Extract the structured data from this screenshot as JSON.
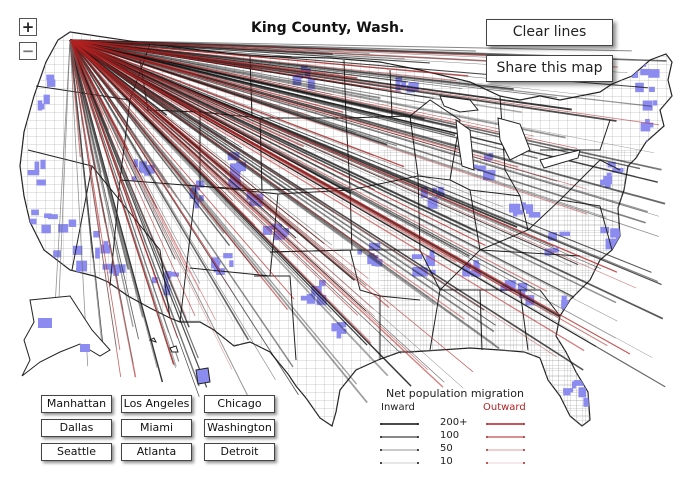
{
  "map": {
    "title": "King County, Wash.",
    "origin_label": "King County, Wash.",
    "colors": {
      "inward_line": "#111111",
      "outward_line": "#b22222",
      "highlight_county": "#8c8cf0",
      "county_border": "#888888",
      "state_border": "#222222",
      "land": "#ffffff"
    }
  },
  "controls": {
    "zoom_in_symbol": "+",
    "zoom_out_symbol": "−",
    "clear_lines_label": "Clear lines",
    "share_map_label": "Share this map"
  },
  "cities": [
    {
      "label": "Manhattan"
    },
    {
      "label": "Los Angeles"
    },
    {
      "label": "Chicago"
    },
    {
      "label": "Dallas"
    },
    {
      "label": "Miami"
    },
    {
      "label": "Washington"
    },
    {
      "label": "Seattle"
    },
    {
      "label": "Atlanta"
    },
    {
      "label": "Detroit"
    }
  ],
  "legend": {
    "title": "Net population migration",
    "inward_label": "Inward",
    "outward_label": "Outward",
    "levels": [
      "200+",
      "100",
      "50",
      "10"
    ]
  }
}
